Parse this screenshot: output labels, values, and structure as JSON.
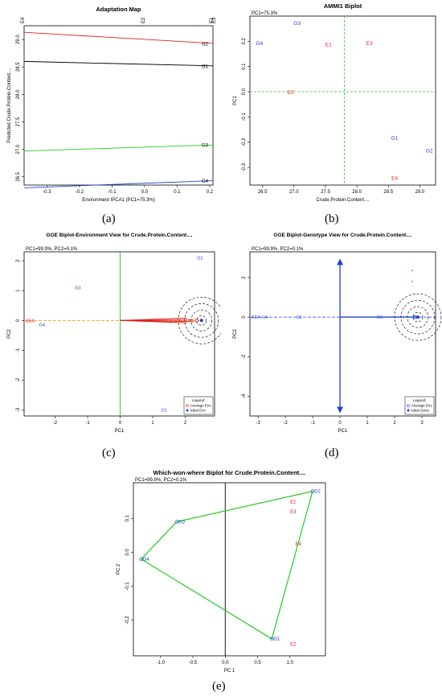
{
  "colors": {
    "red": "#e02020",
    "blue": "#1f3fd6",
    "green": "#22cc22",
    "orange": "#e8a000",
    "grey": "#888888"
  },
  "chart_data": [
    {
      "id": "a",
      "type": "line",
      "caption": "(a)",
      "title": "Adaptation Map",
      "xlabel": "Environment IPCA1 (PC1=75.3%)",
      "ylabel": "Predicted Crude.Protein.Content....",
      "xlim": [
        -0.37,
        0.21
      ],
      "ylim": [
        26.35,
        29.25
      ],
      "xticks": [
        "-0.3",
        "-0.2",
        "-0.1",
        "0.0",
        "0.1",
        "0.2"
      ],
      "xtick_values": [
        -0.3,
        -0.2,
        -0.1,
        0.0,
        0.1,
        0.2
      ],
      "yticks": [
        "26.5",
        "27.0",
        "27.5",
        "28.0",
        "28.5",
        "29.0"
      ],
      "ytick_values": [
        26.5,
        27.0,
        27.5,
        28.0,
        28.5,
        29.0
      ],
      "top_labels": [
        {
          "text": "E4",
          "x": -0.37
        },
        {
          "text": "E2",
          "x": 0.0
        },
        {
          "text": "E1",
          "x": 0.21
        },
        {
          "text": "E3",
          "x": 0.21
        }
      ],
      "series": [
        {
          "name": "G2",
          "color": "#e02020",
          "x": [
            -0.37,
            0.21
          ],
          "y": [
            29.13,
            28.93
          ]
        },
        {
          "name": "G1",
          "color": "#000000",
          "x": [
            -0.37,
            0.21
          ],
          "y": [
            28.6,
            28.52
          ]
        },
        {
          "name": "G3",
          "color": "#22cc22",
          "x": [
            -0.37,
            0.21
          ],
          "y": [
            26.97,
            27.08
          ]
        },
        {
          "name": "G4",
          "color": "#1f3fd6",
          "x": [
            -0.37,
            0.21
          ],
          "y": [
            26.3,
            26.43
          ]
        }
      ]
    },
    {
      "id": "b",
      "type": "scatter",
      "caption": "(b)",
      "title": "AMMI1 Biplot",
      "subtitle": "PC1=75.3%",
      "xlabel": "Crude.Protein.Content....",
      "ylabel": "PC1",
      "xlim": [
        26.3,
        29.25
      ],
      "ylim": [
        -0.37,
        0.3
      ],
      "xticks": [
        "26.5",
        "27.0",
        "27.5",
        "28.0",
        "28.5",
        "29.0"
      ],
      "xtick_values": [
        26.5,
        27.0,
        27.5,
        28.0,
        28.5,
        29.0
      ],
      "yticks": [
        "-0.3",
        "-0.2",
        "-0.1",
        "0.0",
        "0.1",
        "0.2"
      ],
      "ytick_values": [
        -0.3,
        -0.2,
        -0.1,
        0.0,
        0.1,
        0.2
      ],
      "ref_x": 27.8,
      "ref_y": 0.0,
      "points": [
        {
          "label": "G3",
          "x": 27.05,
          "y": 0.265,
          "color": "#1f3fd6"
        },
        {
          "label": "G4",
          "x": 26.45,
          "y": 0.185,
          "color": "#1f3fd6"
        },
        {
          "label": "E1",
          "x": 27.55,
          "y": 0.18,
          "color": "#e02020"
        },
        {
          "label": "E3",
          "x": 28.2,
          "y": 0.185,
          "color": "#e02020"
        },
        {
          "label": "E2",
          "x": 26.95,
          "y": -0.01,
          "color": "#e02020"
        },
        {
          "label": "G1",
          "x": 28.6,
          "y": -0.19,
          "color": "#1f3fd6"
        },
        {
          "label": "G2",
          "x": 29.15,
          "y": -0.24,
          "color": "#1f3fd6"
        },
        {
          "label": "E4",
          "x": 28.6,
          "y": -0.35,
          "color": "#e02020"
        }
      ]
    },
    {
      "id": "c",
      "type": "scatter",
      "caption": "(c)",
      "title": "GGE Biplot-Environment View for Crude.Protein.Content....",
      "subtitle": "PC1=99.9%, PC2=0.1%",
      "xlabel": "PC1",
      "ylabel": "PC2",
      "xlim": [
        -2.95,
        2.9
      ],
      "ylim": [
        -3.2,
        2.3
      ],
      "xticks": [
        "-2",
        "-1",
        "0",
        "1",
        "2"
      ],
      "xtick_values": [
        -2,
        -1,
        0,
        1,
        2
      ],
      "yticks": [
        "-3",
        "-2",
        "-1",
        "0",
        "1",
        "2"
      ],
      "ytick_values": [
        -3,
        -2,
        -1,
        0,
        1,
        2
      ],
      "aea_label": "AEA",
      "points": [
        {
          "label": "G2",
          "x": 2.45,
          "y": 2.05,
          "color": "#1f3fd6"
        },
        {
          "label": "G3",
          "x": -1.3,
          "y": 1.05,
          "color": "#1f3fd6"
        },
        {
          "label": "G4",
          "x": -2.4,
          "y": -0.2,
          "color": "#1f3fd6"
        },
        {
          "label": "G1",
          "x": 1.35,
          "y": -3.05,
          "color": "#1f3fd6"
        }
      ],
      "ideal": {
        "x": 2.5,
        "y": 0.0
      },
      "legend": {
        "title": "Legend:",
        "items": [
          "Average Env",
          "Ideal Env"
        ]
      }
    },
    {
      "id": "d",
      "type": "scatter",
      "caption": "(d)",
      "title": "GGE Biplot-Genotype View for Crude.Protein.Content....",
      "subtitle": "PC1=99.9%, PC2=0.1%",
      "xlabel": "PC1",
      "ylabel": "PC2",
      "xlim": [
        -3.3,
        3.5
      ],
      "ylim": [
        -5.0,
        3.3
      ],
      "xticks": [
        "-3",
        "-2",
        "-1",
        "0",
        "1",
        "2",
        "3"
      ],
      "xtick_values": [
        -3,
        -2,
        -1,
        0,
        1,
        2,
        3
      ],
      "yticks": [
        "-4",
        "-2",
        "0",
        "2"
      ],
      "ytick_values": [
        -4,
        -2,
        0,
        2
      ],
      "aea_label": "AEA",
      "points": [
        {
          "label": "G4",
          "x": -2.75,
          "y": 0.0,
          "color": "#1f3fd6"
        },
        {
          "label": "G3",
          "x": -1.5,
          "y": 0.0,
          "color": "#1f3fd6"
        },
        {
          "label": "G1",
          "x": 1.45,
          "y": 0.0,
          "color": "#1f3fd6"
        }
      ],
      "red_points": [
        {
          "x": 2.65,
          "y": 2.35
        },
        {
          "x": 2.65,
          "y": 1.8
        },
        {
          "x": 2.65,
          "y": -4.3
        }
      ],
      "ideal": {
        "x": 2.85,
        "y": 0.0
      },
      "legend": {
        "title": "Legend:",
        "items": [
          "Average Env",
          "Ideal Geno"
        ]
      }
    },
    {
      "id": "e",
      "type": "scatter",
      "caption": "(e)",
      "title": "Which-won-where Biplot for Crude.Protein.Content....",
      "subtitle": "PC1=99.9%; PC2=0.1%",
      "xlabel": "PC 1",
      "ylabel": "PC 2",
      "xlim": [
        -1.42,
        1.55
      ],
      "ylim": [
        -0.305,
        0.205
      ],
      "xticks": [
        "-1.0",
        "-0.5",
        "0.0",
        "0.5",
        "1.0"
      ],
      "xtick_values": [
        -1.0,
        -0.5,
        0.0,
        0.5,
        1.0
      ],
      "yticks": [
        "-0.2",
        "-0.1",
        "0.0",
        "0.1"
      ],
      "ytick_values": [
        -0.2,
        -0.1,
        0.0,
        0.1
      ],
      "hull": [
        {
          "label": "G2",
          "x": 1.35,
          "y": 0.18
        },
        {
          "label": "G1",
          "x": 0.72,
          "y": -0.255
        },
        {
          "label": "G4",
          "x": -1.3,
          "y": -0.02
        },
        {
          "label": "G3",
          "x": -0.75,
          "y": 0.09
        }
      ],
      "env_points": [
        {
          "label": "E1",
          "x": 1.05,
          "y": 0.145
        },
        {
          "label": "E3",
          "x": 1.05,
          "y": 0.115
        },
        {
          "label": "E4",
          "x": 1.13,
          "y": 0.02
        },
        {
          "label": "E2",
          "x": 1.05,
          "y": -0.275
        }
      ]
    }
  ]
}
